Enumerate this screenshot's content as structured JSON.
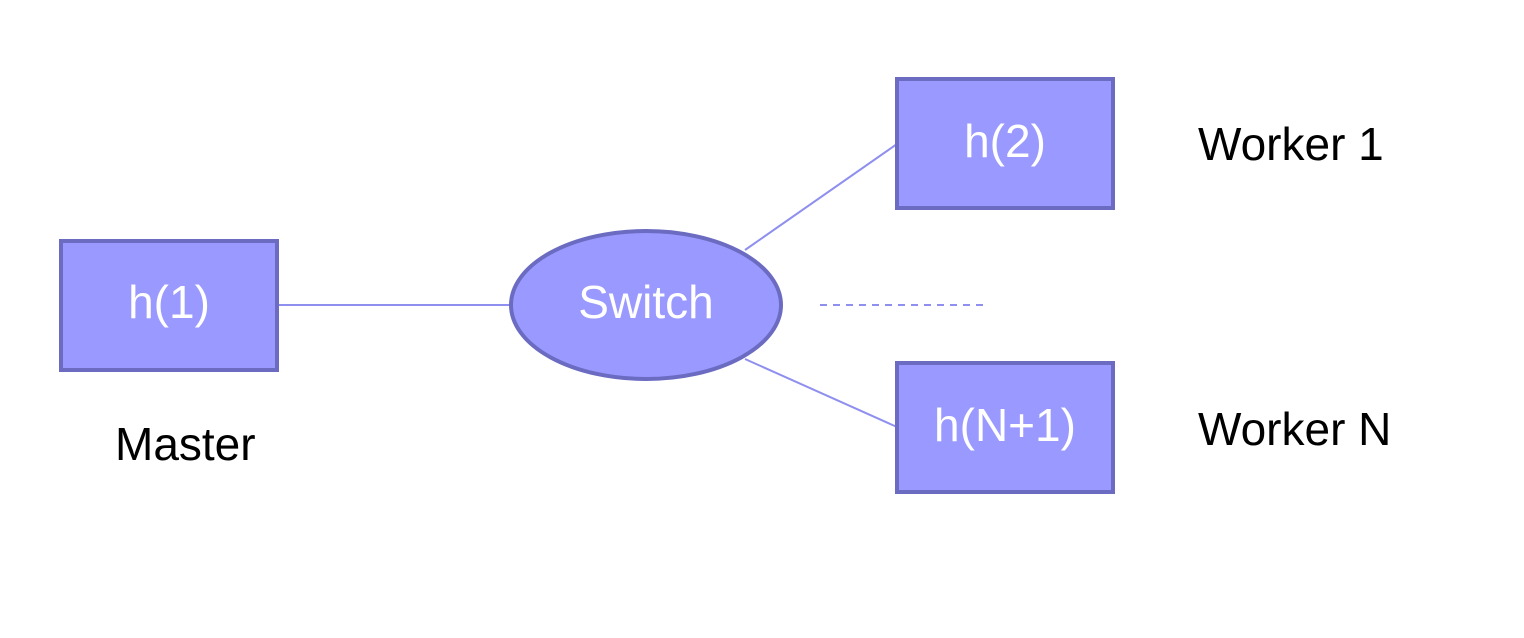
{
  "nodes": {
    "master_host": "h(1)",
    "switch": "Switch",
    "worker_first_host": "h(2)",
    "worker_last_host": "h(N+1)"
  },
  "labels": {
    "master": "Master",
    "worker_first": "Worker 1",
    "worker_last": "Worker N"
  },
  "colors": {
    "node_fill": "#9999ff",
    "node_stroke": "#6b6bc2",
    "link": "#8f8fef",
    "node_text": "#ffffff",
    "label_text": "#000000"
  }
}
